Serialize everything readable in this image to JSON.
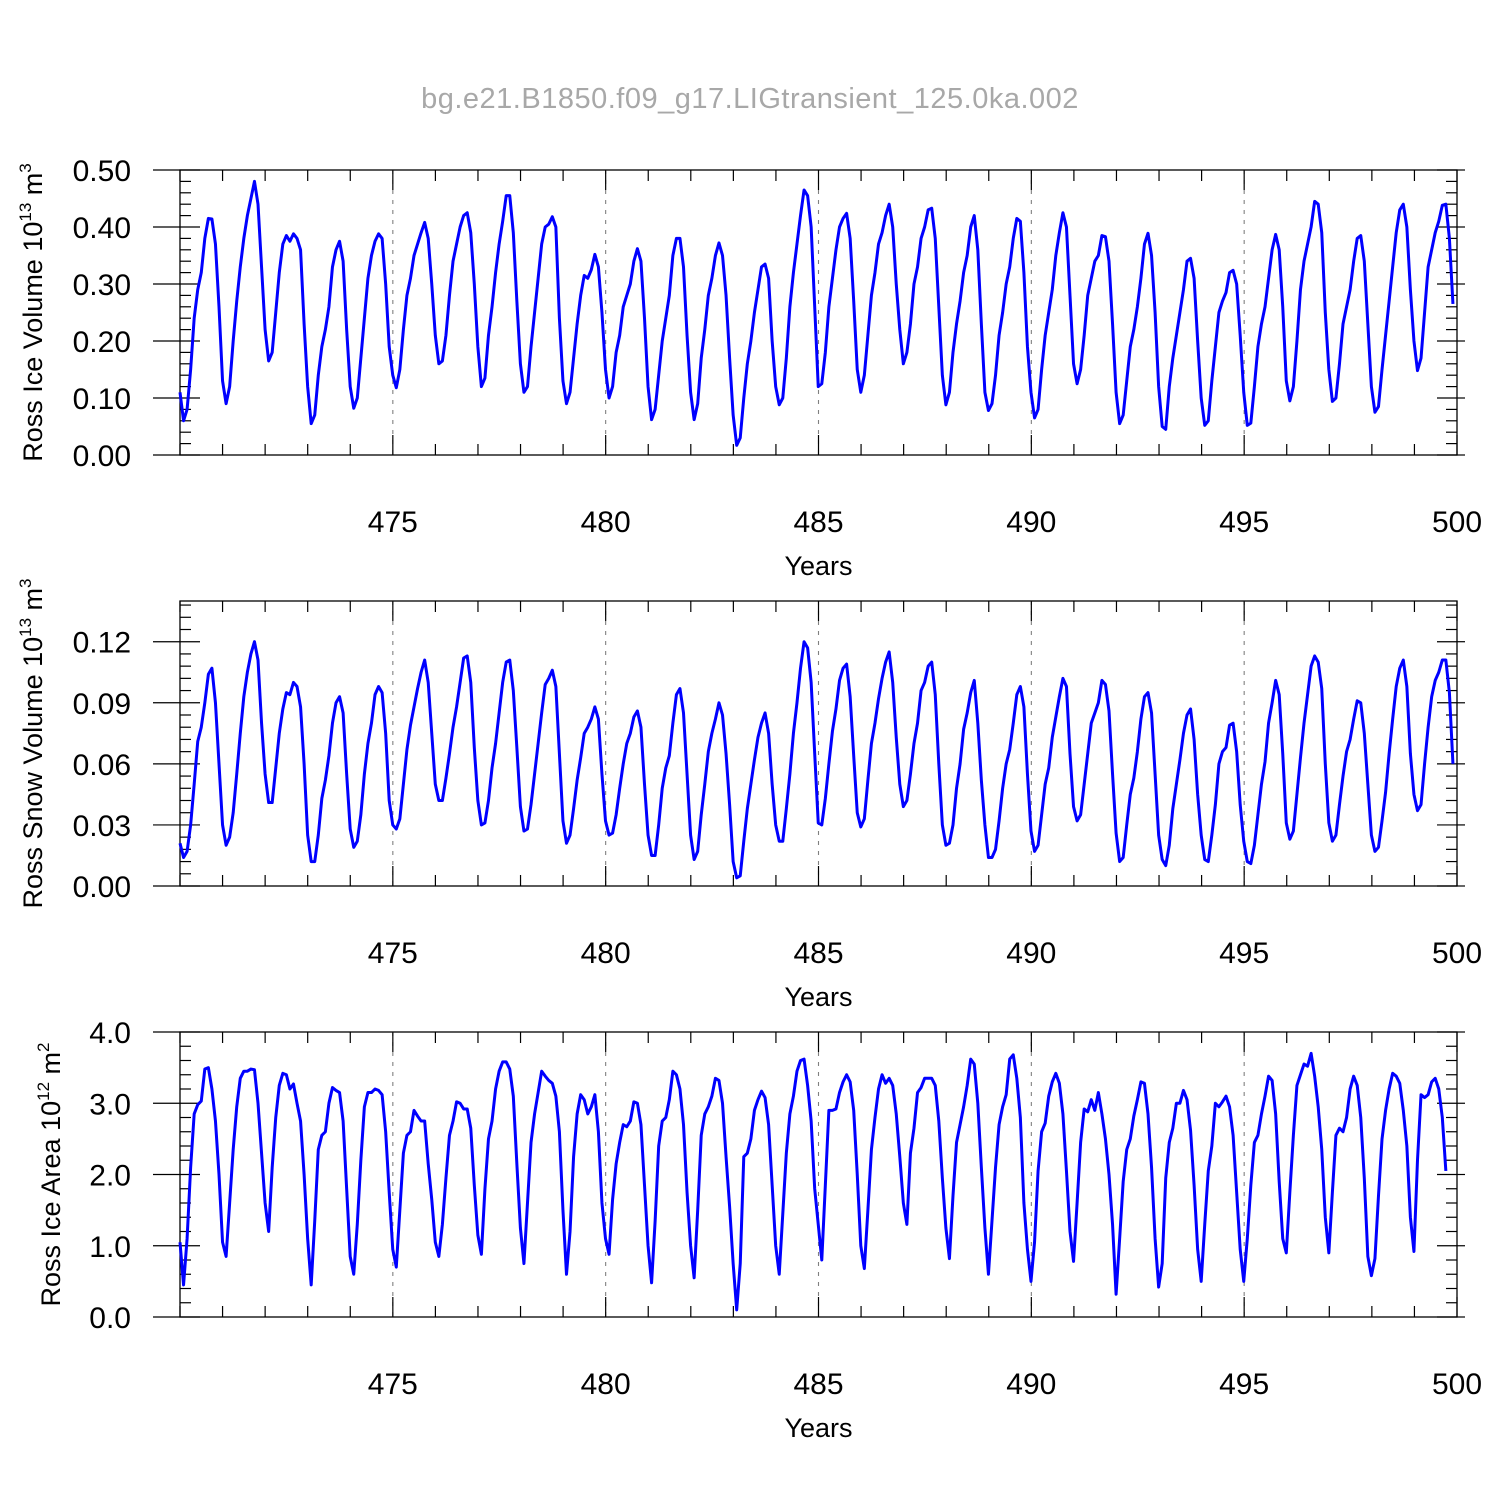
{
  "title": "bg.e21.B1850.f09_g17.LIGtransient_125.0ka.002",
  "colors": {
    "series": "#0000ff",
    "axes": "#000000",
    "title": "#a8a8a8",
    "grid": "#808080"
  },
  "chart_data": [
    {
      "type": "line",
      "ylabel": {
        "text": "Ross Ice Volume 10",
        "exponent": "13",
        "unit": " m",
        "unit_exponent": "3"
      },
      "xlabel": "Years",
      "xlim": [
        470.0,
        500.0
      ],
      "ylim": [
        0.0,
        0.5
      ],
      "x_ticks": [
        475,
        480,
        485,
        490,
        495,
        500
      ],
      "x_tick_labels": [
        "475",
        "480",
        "485",
        "490",
        "495",
        "500"
      ],
      "y_ticks": [
        0.0,
        0.1,
        0.2,
        0.3,
        0.4,
        0.5
      ],
      "y_tick_labels": [
        "0.00",
        "0.10",
        "0.20",
        "0.30",
        "0.40",
        "0.50"
      ],
      "grid": "vertical dashed at major x ticks",
      "start_year": 470.0,
      "step": 0.0833,
      "values": [
        0.11,
        0.06,
        0.08,
        0.15,
        0.24,
        0.29,
        0.32,
        0.38,
        0.415,
        0.414,
        0.37,
        0.26,
        0.13,
        0.09,
        0.12,
        0.2,
        0.27,
        0.33,
        0.38,
        0.42,
        0.45,
        0.48,
        0.44,
        0.33,
        0.22,
        0.165,
        0.18,
        0.25,
        0.32,
        0.37,
        0.385,
        0.375,
        0.388,
        0.38,
        0.36,
        0.23,
        0.12,
        0.055,
        0.07,
        0.14,
        0.19,
        0.22,
        0.26,
        0.33,
        0.36,
        0.375,
        0.34,
        0.22,
        0.12,
        0.082,
        0.1,
        0.17,
        0.24,
        0.31,
        0.35,
        0.375,
        0.388,
        0.38,
        0.3,
        0.19,
        0.14,
        0.118,
        0.15,
        0.22,
        0.28,
        0.31,
        0.35,
        0.37,
        0.39,
        0.408,
        0.38,
        0.3,
        0.21,
        0.16,
        0.165,
        0.21,
        0.28,
        0.34,
        0.37,
        0.4,
        0.42,
        0.425,
        0.39,
        0.3,
        0.19,
        0.12,
        0.135,
        0.21,
        0.26,
        0.32,
        0.37,
        0.41,
        0.455,
        0.455,
        0.39,
        0.27,
        0.16,
        0.11,
        0.12,
        0.19,
        0.25,
        0.31,
        0.37,
        0.4,
        0.405,
        0.418,
        0.4,
        0.24,
        0.13,
        0.09,
        0.11,
        0.17,
        0.23,
        0.28,
        0.315,
        0.31,
        0.325,
        0.352,
        0.33,
        0.25,
        0.15,
        0.1,
        0.12,
        0.18,
        0.21,
        0.26,
        0.28,
        0.3,
        0.34,
        0.362,
        0.34,
        0.24,
        0.12,
        0.062,
        0.08,
        0.14,
        0.2,
        0.24,
        0.28,
        0.35,
        0.38,
        0.38,
        0.33,
        0.21,
        0.11,
        0.062,
        0.09,
        0.17,
        0.22,
        0.28,
        0.31,
        0.35,
        0.372,
        0.35,
        0.28,
        0.17,
        0.07,
        0.017,
        0.03,
        0.1,
        0.16,
        0.2,
        0.25,
        0.29,
        0.33,
        0.335,
        0.31,
        0.2,
        0.12,
        0.088,
        0.1,
        0.17,
        0.26,
        0.32,
        0.37,
        0.42,
        0.465,
        0.455,
        0.4,
        0.26,
        0.12,
        0.125,
        0.18,
        0.26,
        0.31,
        0.36,
        0.4,
        0.415,
        0.424,
        0.38,
        0.27,
        0.15,
        0.11,
        0.14,
        0.21,
        0.28,
        0.32,
        0.37,
        0.39,
        0.42,
        0.44,
        0.4,
        0.3,
        0.22,
        0.16,
        0.18,
        0.23,
        0.3,
        0.33,
        0.38,
        0.4,
        0.43,
        0.433,
        0.38,
        0.26,
        0.14,
        0.088,
        0.11,
        0.18,
        0.23,
        0.27,
        0.32,
        0.35,
        0.4,
        0.42,
        0.36,
        0.23,
        0.11,
        0.078,
        0.09,
        0.14,
        0.21,
        0.25,
        0.3,
        0.33,
        0.38,
        0.415,
        0.41,
        0.32,
        0.19,
        0.11,
        0.065,
        0.08,
        0.15,
        0.21,
        0.25,
        0.29,
        0.35,
        0.39,
        0.425,
        0.4,
        0.28,
        0.16,
        0.125,
        0.15,
        0.21,
        0.28,
        0.31,
        0.34,
        0.35,
        0.385,
        0.383,
        0.34,
        0.23,
        0.11,
        0.055,
        0.07,
        0.13,
        0.19,
        0.22,
        0.26,
        0.31,
        0.37,
        0.389,
        0.35,
        0.25,
        0.12,
        0.05,
        0.045,
        0.12,
        0.17,
        0.21,
        0.25,
        0.29,
        0.34,
        0.345,
        0.31,
        0.2,
        0.1,
        0.052,
        0.06,
        0.13,
        0.19,
        0.25,
        0.27,
        0.285,
        0.32,
        0.324,
        0.3,
        0.21,
        0.11,
        0.052,
        0.056,
        0.12,
        0.19,
        0.23,
        0.26,
        0.31,
        0.36,
        0.387,
        0.36,
        0.26,
        0.13,
        0.095,
        0.12,
        0.2,
        0.29,
        0.34,
        0.37,
        0.4,
        0.445,
        0.44,
        0.39,
        0.25,
        0.15,
        0.094,
        0.1,
        0.16,
        0.23,
        0.26,
        0.29,
        0.34,
        0.38,
        0.385,
        0.34,
        0.23,
        0.12,
        0.075,
        0.085,
        0.15,
        0.21,
        0.27,
        0.33,
        0.39,
        0.43,
        0.44,
        0.4,
        0.29,
        0.2,
        0.148,
        0.17,
        0.25,
        0.33,
        0.36,
        0.39,
        0.41,
        0.438,
        0.44,
        0.38,
        0.265
      ]
    },
    {
      "type": "line",
      "ylabel": {
        "text": "Ross Snow Volume 10",
        "exponent": "13",
        "unit": " m",
        "unit_exponent": "3"
      },
      "xlabel": "Years",
      "xlim": [
        470.0,
        500.0
      ],
      "ylim": [
        0.0,
        0.14
      ],
      "x_ticks": [
        475,
        480,
        485,
        490,
        495,
        500
      ],
      "x_tick_labels": [
        "475",
        "480",
        "485",
        "490",
        "495",
        "500"
      ],
      "y_ticks": [
        0.0,
        0.03,
        0.06,
        0.09,
        0.12
      ],
      "y_tick_labels": [
        "0.00",
        "0.03",
        "0.06",
        "0.09",
        "0.12"
      ],
      "grid": "vertical dashed at major x ticks",
      "start_year": 470.0,
      "step": 0.0833,
      "values": [
        0.021,
        0.014,
        0.017,
        0.03,
        0.05,
        0.071,
        0.078,
        0.09,
        0.104,
        0.107,
        0.09,
        0.06,
        0.03,
        0.02,
        0.024,
        0.036,
        0.055,
        0.075,
        0.093,
        0.105,
        0.114,
        0.12,
        0.111,
        0.08,
        0.055,
        0.041,
        0.041,
        0.058,
        0.075,
        0.087,
        0.095,
        0.094,
        0.1,
        0.098,
        0.088,
        0.06,
        0.025,
        0.012,
        0.012,
        0.025,
        0.043,
        0.052,
        0.064,
        0.08,
        0.09,
        0.093,
        0.085,
        0.055,
        0.028,
        0.019,
        0.022,
        0.035,
        0.055,
        0.07,
        0.08,
        0.094,
        0.098,
        0.095,
        0.075,
        0.042,
        0.03,
        0.028,
        0.033,
        0.05,
        0.067,
        0.079,
        0.088,
        0.097,
        0.105,
        0.111,
        0.1,
        0.075,
        0.05,
        0.042,
        0.042,
        0.053,
        0.065,
        0.078,
        0.088,
        0.1,
        0.112,
        0.113,
        0.1,
        0.068,
        0.042,
        0.03,
        0.031,
        0.042,
        0.058,
        0.07,
        0.085,
        0.1,
        0.11,
        0.111,
        0.096,
        0.068,
        0.039,
        0.027,
        0.028,
        0.04,
        0.055,
        0.07,
        0.085,
        0.099,
        0.102,
        0.106,
        0.098,
        0.065,
        0.032,
        0.021,
        0.025,
        0.038,
        0.052,
        0.063,
        0.075,
        0.078,
        0.082,
        0.088,
        0.082,
        0.055,
        0.032,
        0.025,
        0.026,
        0.035,
        0.048,
        0.06,
        0.07,
        0.075,
        0.083,
        0.086,
        0.078,
        0.05,
        0.025,
        0.015,
        0.015,
        0.03,
        0.048,
        0.058,
        0.064,
        0.08,
        0.094,
        0.097,
        0.085,
        0.055,
        0.025,
        0.013,
        0.017,
        0.035,
        0.05,
        0.066,
        0.075,
        0.082,
        0.09,
        0.084,
        0.065,
        0.04,
        0.012,
        0.004,
        0.005,
        0.022,
        0.038,
        0.05,
        0.062,
        0.073,
        0.08,
        0.085,
        0.075,
        0.05,
        0.03,
        0.022,
        0.022,
        0.038,
        0.055,
        0.075,
        0.09,
        0.107,
        0.12,
        0.117,
        0.1,
        0.065,
        0.031,
        0.03,
        0.043,
        0.06,
        0.076,
        0.087,
        0.101,
        0.107,
        0.109,
        0.093,
        0.064,
        0.036,
        0.029,
        0.033,
        0.052,
        0.07,
        0.08,
        0.092,
        0.102,
        0.11,
        0.115,
        0.1,
        0.073,
        0.05,
        0.039,
        0.042,
        0.055,
        0.07,
        0.08,
        0.096,
        0.1,
        0.108,
        0.11,
        0.094,
        0.06,
        0.03,
        0.02,
        0.021,
        0.03,
        0.048,
        0.06,
        0.077,
        0.085,
        0.095,
        0.101,
        0.08,
        0.052,
        0.03,
        0.014,
        0.014,
        0.018,
        0.032,
        0.048,
        0.06,
        0.067,
        0.08,
        0.094,
        0.098,
        0.088,
        0.055,
        0.027,
        0.017,
        0.02,
        0.035,
        0.05,
        0.058,
        0.073,
        0.083,
        0.093,
        0.102,
        0.098,
        0.065,
        0.039,
        0.032,
        0.035,
        0.05,
        0.065,
        0.08,
        0.085,
        0.09,
        0.101,
        0.099,
        0.086,
        0.055,
        0.026,
        0.012,
        0.014,
        0.03,
        0.045,
        0.053,
        0.066,
        0.082,
        0.093,
        0.095,
        0.085,
        0.055,
        0.025,
        0.013,
        0.01,
        0.02,
        0.038,
        0.05,
        0.062,
        0.075,
        0.084,
        0.087,
        0.072,
        0.045,
        0.025,
        0.013,
        0.012,
        0.025,
        0.04,
        0.06,
        0.066,
        0.068,
        0.079,
        0.08,
        0.066,
        0.04,
        0.022,
        0.012,
        0.011,
        0.02,
        0.035,
        0.05,
        0.061,
        0.08,
        0.09,
        0.101,
        0.094,
        0.065,
        0.031,
        0.023,
        0.027,
        0.045,
        0.063,
        0.08,
        0.094,
        0.108,
        0.113,
        0.11,
        0.097,
        0.06,
        0.031,
        0.022,
        0.025,
        0.04,
        0.054,
        0.066,
        0.072,
        0.082,
        0.091,
        0.09,
        0.075,
        0.05,
        0.025,
        0.017,
        0.019,
        0.032,
        0.046,
        0.065,
        0.082,
        0.098,
        0.107,
        0.111,
        0.098,
        0.065,
        0.045,
        0.037,
        0.04,
        0.06,
        0.078,
        0.093,
        0.101,
        0.105,
        0.111,
        0.111,
        0.095,
        0.06
      ]
    },
    {
      "type": "line",
      "ylabel": {
        "text": "Ross Ice Area 10",
        "exponent": "12",
        "unit": " m",
        "unit_exponent": "2"
      },
      "xlabel": "Years",
      "xlim": [
        470.0,
        500.0
      ],
      "ylim": [
        0.0,
        4.0
      ],
      "x_ticks": [
        475,
        480,
        485,
        490,
        495,
        500
      ],
      "x_tick_labels": [
        "475",
        "480",
        "485",
        "490",
        "495",
        "500"
      ],
      "y_ticks": [
        0.0,
        1.0,
        2.0,
        3.0,
        4.0
      ],
      "y_tick_labels": [
        "0.0",
        "1.0",
        "2.0",
        "3.0",
        "4.0"
      ],
      "grid": "vertical dashed at major x ticks",
      "start_year": 470.0,
      "step": 0.0833,
      "values": [
        1.05,
        0.45,
        1.1,
        2.1,
        2.85,
        2.98,
        3.03,
        3.48,
        3.5,
        3.2,
        2.75,
        2.0,
        1.05,
        0.85,
        1.6,
        2.35,
        2.95,
        3.35,
        3.45,
        3.45,
        3.48,
        3.47,
        3.0,
        2.3,
        1.6,
        1.2,
        2.1,
        2.8,
        3.25,
        3.42,
        3.4,
        3.2,
        3.27,
        3.0,
        2.75,
        2.0,
        1.1,
        0.45,
        1.35,
        2.35,
        2.55,
        2.6,
        3.0,
        3.22,
        3.18,
        3.15,
        2.75,
        1.8,
        0.85,
        0.6,
        1.3,
        2.2,
        2.95,
        3.15,
        3.15,
        3.2,
        3.18,
        3.12,
        2.6,
        1.75,
        0.95,
        0.7,
        1.5,
        2.3,
        2.55,
        2.6,
        2.9,
        2.82,
        2.75,
        2.75,
        2.15,
        1.65,
        1.05,
        0.85,
        1.3,
        1.95,
        2.55,
        2.75,
        3.02,
        3.0,
        2.92,
        2.92,
        2.65,
        1.85,
        1.15,
        0.88,
        1.8,
        2.5,
        2.75,
        3.2,
        3.45,
        3.58,
        3.58,
        3.48,
        3.1,
        2.15,
        1.25,
        0.75,
        1.6,
        2.45,
        2.85,
        3.15,
        3.45,
        3.38,
        3.32,
        3.28,
        3.1,
        2.6,
        1.5,
        0.6,
        1.2,
        2.25,
        2.85,
        3.12,
        3.05,
        2.85,
        2.95,
        3.12,
        2.6,
        1.6,
        1.1,
        0.88,
        1.65,
        2.15,
        2.45,
        2.7,
        2.67,
        2.75,
        3.02,
        3.0,
        2.7,
        1.85,
        1.0,
        0.48,
        1.35,
        2.4,
        2.75,
        2.8,
        3.05,
        3.45,
        3.4,
        3.2,
        2.7,
        1.75,
        1.0,
        0.55,
        1.5,
        2.55,
        2.85,
        2.95,
        3.1,
        3.35,
        3.32,
        3.0,
        2.25,
        1.55,
        0.75,
        0.1,
        0.75,
        2.25,
        2.3,
        2.5,
        2.9,
        3.05,
        3.17,
        3.08,
        2.7,
        1.85,
        1.0,
        0.6,
        1.45,
        2.3,
        2.85,
        3.1,
        3.45,
        3.6,
        3.62,
        3.25,
        2.75,
        1.8,
        1.3,
        0.8,
        1.85,
        2.9,
        2.9,
        2.92,
        3.15,
        3.3,
        3.4,
        3.3,
        2.9,
        2.0,
        1.0,
        0.68,
        1.5,
        2.35,
        2.8,
        3.2,
        3.4,
        3.28,
        3.35,
        3.25,
        2.85,
        2.25,
        1.6,
        1.3,
        2.3,
        2.65,
        3.15,
        3.22,
        3.35,
        3.35,
        3.35,
        3.25,
        2.75,
        1.95,
        1.25,
        0.82,
        1.7,
        2.45,
        2.7,
        2.95,
        3.25,
        3.62,
        3.55,
        3.0,
        2.1,
        1.25,
        0.6,
        1.35,
        2.1,
        2.7,
        2.95,
        3.12,
        3.62,
        3.68,
        3.35,
        2.8,
        1.6,
        0.95,
        0.5,
        1.05,
        2.05,
        2.6,
        2.72,
        3.1,
        3.3,
        3.42,
        3.28,
        2.85,
        2.05,
        1.2,
        0.78,
        1.6,
        2.45,
        2.92,
        2.88,
        3.05,
        2.9,
        3.15,
        2.85,
        2.5,
        2.0,
        1.3,
        0.32,
        1.1,
        1.9,
        2.35,
        2.5,
        2.82,
        3.05,
        3.3,
        3.28,
        2.85,
        2.1,
        1.1,
        0.42,
        0.75,
        1.95,
        2.45,
        2.65,
        3.0,
        3.0,
        3.18,
        3.05,
        2.62,
        1.85,
        0.95,
        0.5,
        1.3,
        2.05,
        2.4,
        3.0,
        2.95,
        3.02,
        3.1,
        2.95,
        2.55,
        1.75,
        0.95,
        0.5,
        1.1,
        1.85,
        2.45,
        2.55,
        2.85,
        3.1,
        3.38,
        3.32,
        2.85,
        1.9,
        1.1,
        0.9,
        1.75,
        2.55,
        3.25,
        3.4,
        3.55,
        3.52,
        3.7,
        3.38,
        2.95,
        2.35,
        1.4,
        0.9,
        1.75,
        2.55,
        2.65,
        2.6,
        2.8,
        3.2,
        3.38,
        3.25,
        2.8,
        1.95,
        0.85,
        0.58,
        0.82,
        1.7,
        2.5,
        2.9,
        3.2,
        3.42,
        3.38,
        3.28,
        2.9,
        2.4,
        1.4,
        0.92,
        2.2,
        3.12,
        3.08,
        3.12,
        3.3,
        3.35,
        3.2,
        2.8,
        2.05
      ]
    }
  ]
}
